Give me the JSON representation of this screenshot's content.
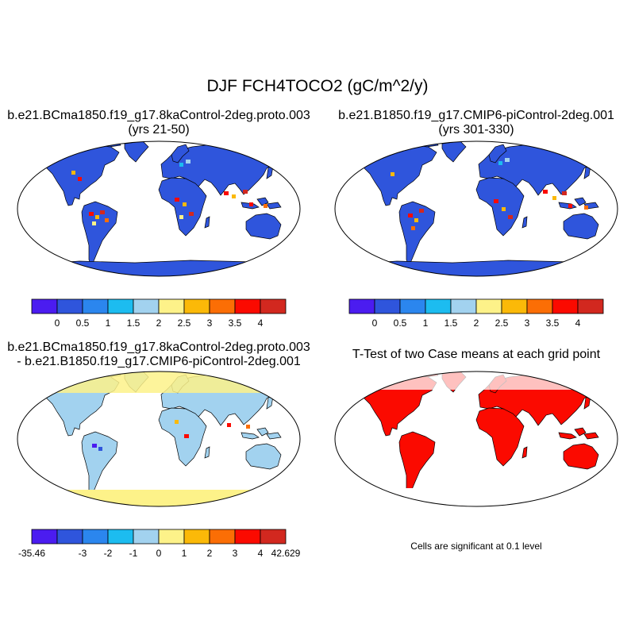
{
  "title": "DJF FCH4TOCO2 (gC/m^2/y)",
  "panels": {
    "case1": {
      "title_line1": "b.e21.BCma1850.f19_g17.8kaControl-2deg.proto.003",
      "title_line2": "(yrs 21-50)"
    },
    "case2": {
      "title_line1": "b.e21.B1850.f19_g17.CMIP6-piControl-2deg.001",
      "title_line2": "(yrs 301-330)"
    },
    "diff": {
      "title_line1": "b.e21.BCma1850.f19_g17.8kaControl-2deg.proto.003",
      "title_line2": "- b.e21.B1850.f19_g17.CMIP6-piControl-2deg.001"
    },
    "ttest": {
      "title_line1": "T-Test of two Case means at each grid point",
      "note": "Cells are significant at 0.1 level"
    }
  },
  "colorbars": {
    "colors": [
      "#4b1cf0",
      "#2f55dc",
      "#2b86ee",
      "#1cbcf0",
      "#a2d2ef",
      "#fdf289",
      "#fbb908",
      "#fb6e05",
      "#fb0a00",
      "#d2281f"
    ],
    "case_labels": [
      "0",
      "0.5",
      "1",
      "1.5",
      "2",
      "2.5",
      "3",
      "3.5",
      "4"
    ],
    "diff_labels": [
      "-35.46",
      "-3",
      "-2",
      "-1",
      "0",
      "1",
      "2",
      "3",
      "4",
      "42.629"
    ]
  },
  "map_colors": {
    "ocean": "#ffffff",
    "case_land": "#2f55dc",
    "diff_land": "#a2d2ef",
    "diff_highlat": "#fdf289",
    "significant": "#fb0a00"
  }
}
